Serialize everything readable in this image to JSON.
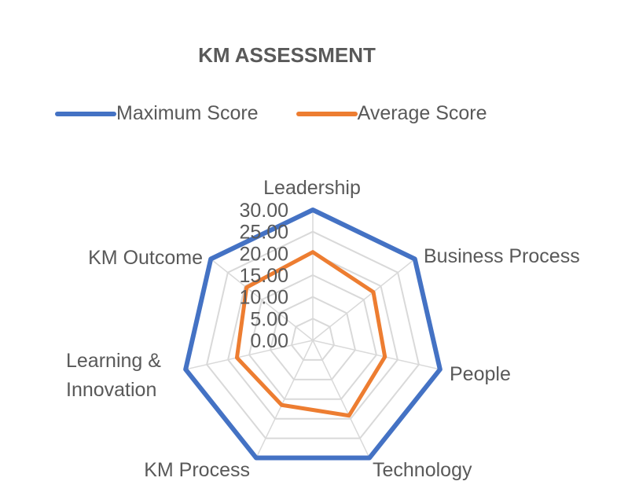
{
  "chart_data": {
    "type": "radar",
    "title": "KM ASSESSMENT",
    "categories": [
      "Leadership",
      "Business Process",
      "People",
      "Technology",
      "KM Process",
      "Learning & Innovation",
      "KM Outcome"
    ],
    "series": [
      {
        "name": "Maximum Score",
        "color": "#4472C4",
        "values": [
          30,
          30,
          30,
          30,
          30,
          30,
          30
        ]
      },
      {
        "name": "Average Score",
        "color": "#ED7D31",
        "values": [
          20.3,
          17.8,
          17.0,
          19.2,
          16.5,
          17.9,
          19.5
        ]
      }
    ],
    "radial_ticks": [
      "0.00",
      "5.00",
      "10.00",
      "15.00",
      "20.00",
      "25.00",
      "30.00"
    ],
    "rlim": [
      0,
      30
    ],
    "grid": true,
    "legend_position": "top"
  }
}
